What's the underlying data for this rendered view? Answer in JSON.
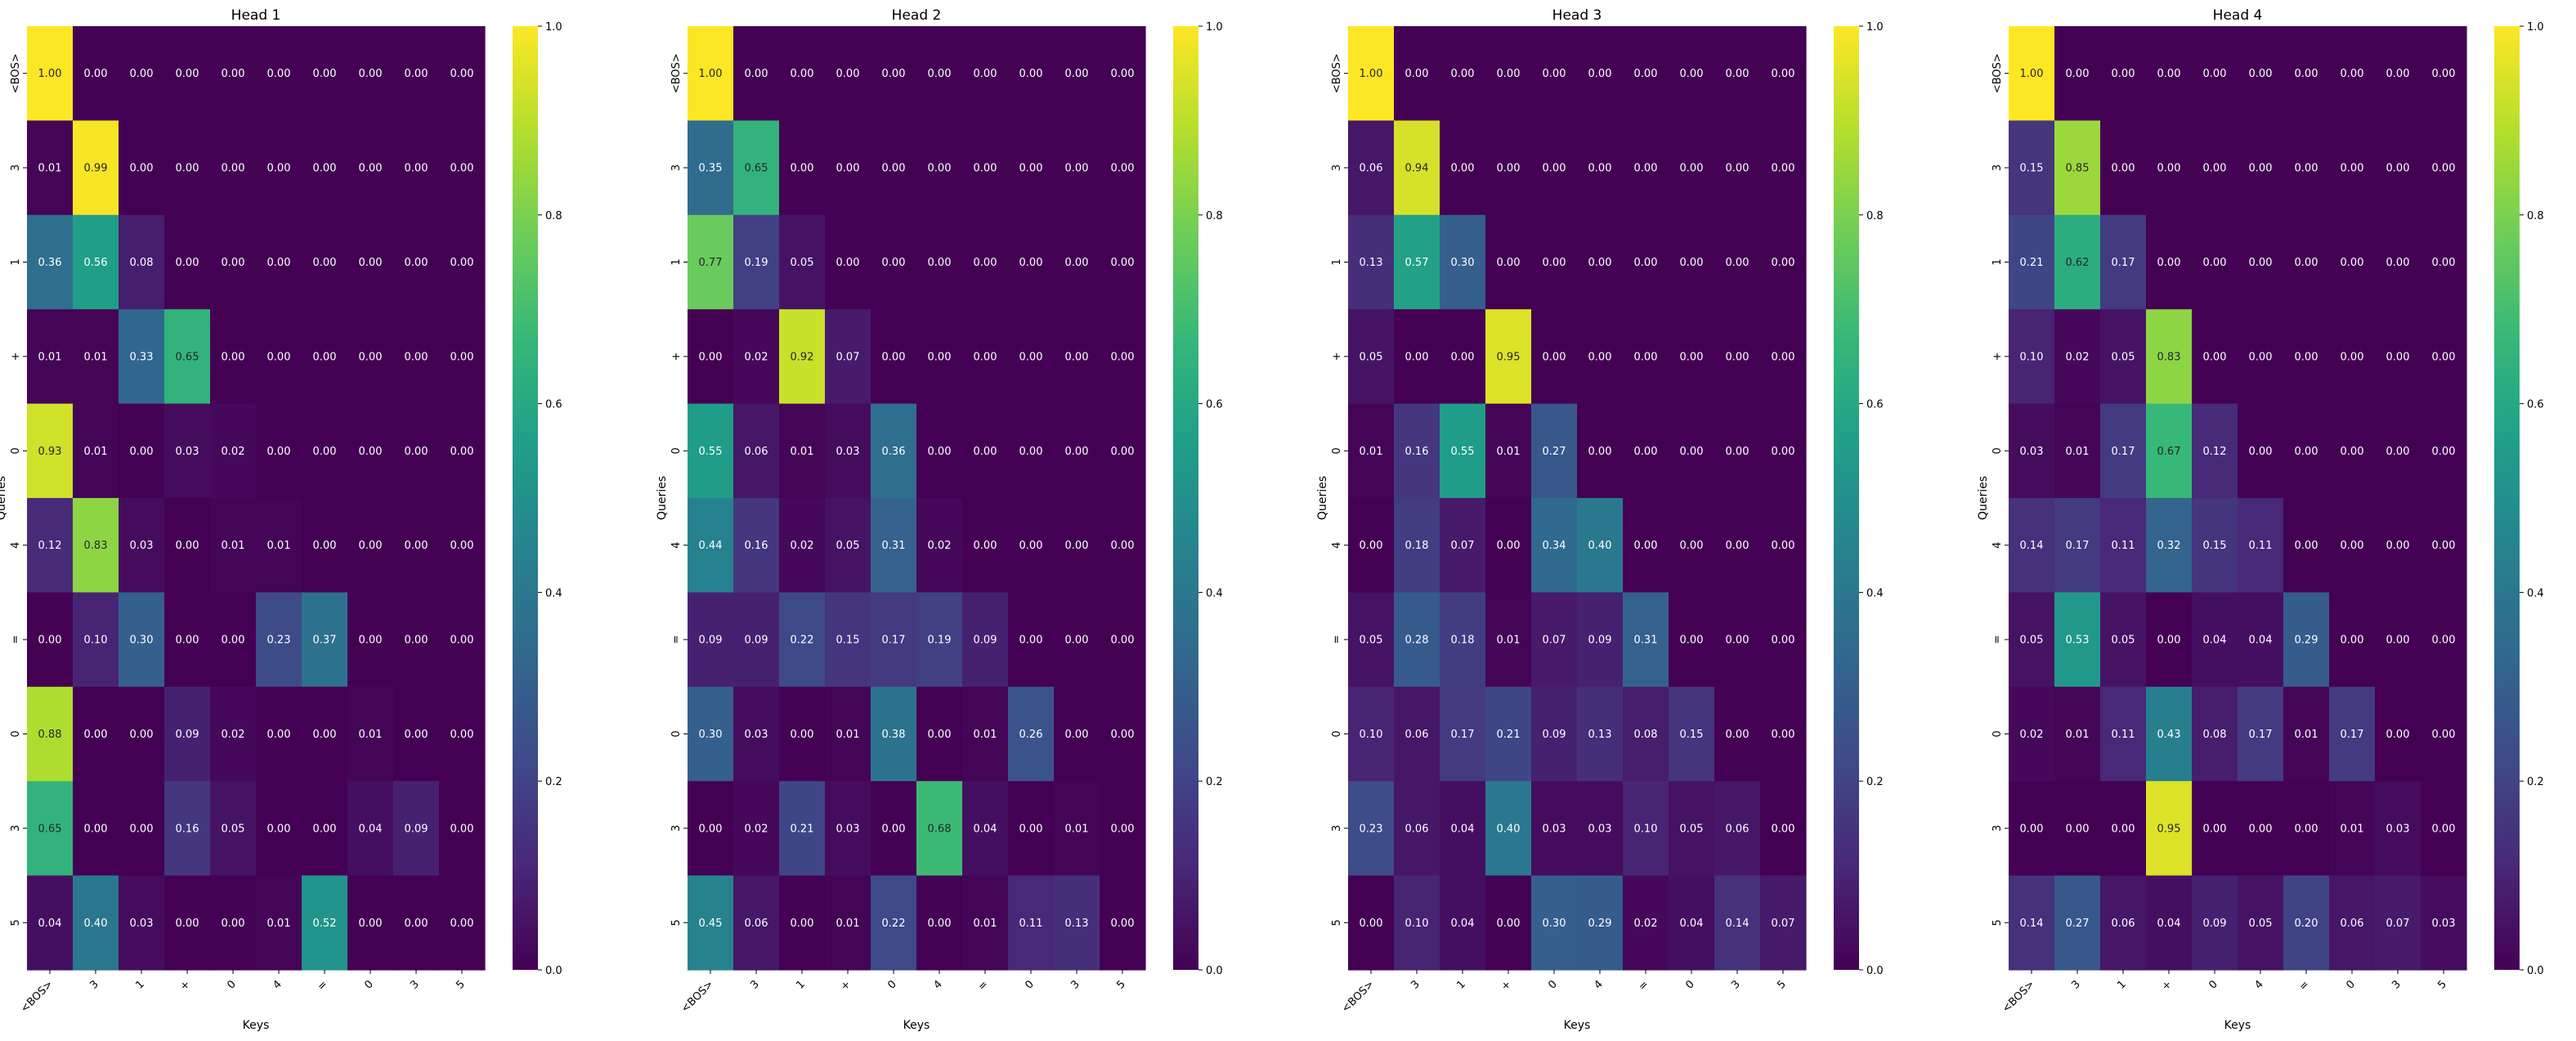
{
  "chart_data": [
    {
      "type": "heatmap",
      "title": "Head 1",
      "xlabel": "Keys",
      "ylabel": "Queries",
      "x_categories": [
        "<BOS>",
        "3",
        "1",
        "+",
        "0",
        "4",
        "=",
        "0",
        "3",
        "5"
      ],
      "y_categories": [
        "<BOS>",
        "3",
        "1",
        "+",
        "0",
        "4",
        "=",
        "0",
        "3",
        "5"
      ],
      "values": [
        [
          1.0,
          0.0,
          0.0,
          0.0,
          0.0,
          0.0,
          0.0,
          0.0,
          0.0,
          0.0
        ],
        [
          0.01,
          0.99,
          0.0,
          0.0,
          0.0,
          0.0,
          0.0,
          0.0,
          0.0,
          0.0
        ],
        [
          0.36,
          0.56,
          0.08,
          0.0,
          0.0,
          0.0,
          0.0,
          0.0,
          0.0,
          0.0
        ],
        [
          0.01,
          0.01,
          0.33,
          0.65,
          0.0,
          0.0,
          0.0,
          0.0,
          0.0,
          0.0
        ],
        [
          0.93,
          0.01,
          0.0,
          0.03,
          0.02,
          0.0,
          0.0,
          0.0,
          0.0,
          0.0
        ],
        [
          0.12,
          0.83,
          0.03,
          0.0,
          0.01,
          0.01,
          0.0,
          0.0,
          0.0,
          0.0
        ],
        [
          0.0,
          0.1,
          0.3,
          0.0,
          0.0,
          0.23,
          0.37,
          0.0,
          0.0,
          0.0
        ],
        [
          0.88,
          0.0,
          0.0,
          0.09,
          0.02,
          0.0,
          0.0,
          0.01,
          0.0,
          0.0
        ],
        [
          0.65,
          0.0,
          0.0,
          0.16,
          0.05,
          0.0,
          0.0,
          0.04,
          0.09,
          0.0
        ],
        [
          0.04,
          0.4,
          0.03,
          0.0,
          0.0,
          0.01,
          0.52,
          0.0,
          0.0,
          0.0
        ]
      ],
      "colorbar": {
        "colormap": "viridis",
        "range": [
          0.0,
          1.0
        ],
        "ticks": [
          "0.0",
          "0.2",
          "0.4",
          "0.6",
          "0.8",
          "1.0"
        ]
      }
    },
    {
      "type": "heatmap",
      "title": "Head 2",
      "xlabel": "Keys",
      "ylabel": "Queries",
      "x_categories": [
        "<BOS>",
        "3",
        "1",
        "+",
        "0",
        "4",
        "=",
        "0",
        "3",
        "5"
      ],
      "y_categories": [
        "<BOS>",
        "3",
        "1",
        "+",
        "0",
        "4",
        "=",
        "0",
        "3",
        "5"
      ],
      "values": [
        [
          1.0,
          0.0,
          0.0,
          0.0,
          0.0,
          0.0,
          0.0,
          0.0,
          0.0,
          0.0
        ],
        [
          0.35,
          0.65,
          0.0,
          0.0,
          0.0,
          0.0,
          0.0,
          0.0,
          0.0,
          0.0
        ],
        [
          0.77,
          0.19,
          0.05,
          0.0,
          0.0,
          0.0,
          0.0,
          0.0,
          0.0,
          0.0
        ],
        [
          0.0,
          0.02,
          0.92,
          0.07,
          0.0,
          0.0,
          0.0,
          0.0,
          0.0,
          0.0
        ],
        [
          0.55,
          0.06,
          0.01,
          0.03,
          0.36,
          0.0,
          0.0,
          0.0,
          0.0,
          0.0
        ],
        [
          0.44,
          0.16,
          0.02,
          0.05,
          0.31,
          0.02,
          0.0,
          0.0,
          0.0,
          0.0
        ],
        [
          0.09,
          0.09,
          0.22,
          0.15,
          0.17,
          0.19,
          0.09,
          0.0,
          0.0,
          0.0
        ],
        [
          0.3,
          0.03,
          0.0,
          0.01,
          0.38,
          0.0,
          0.01,
          0.26,
          0.0,
          0.0
        ],
        [
          0.0,
          0.02,
          0.21,
          0.03,
          0.0,
          0.68,
          0.04,
          0.0,
          0.01,
          0.0
        ],
        [
          0.45,
          0.06,
          0.0,
          0.01,
          0.22,
          0.0,
          0.01,
          0.11,
          0.13,
          0.0
        ]
      ],
      "colorbar": {
        "colormap": "viridis",
        "range": [
          0.0,
          1.0
        ],
        "ticks": [
          "0.0",
          "0.2",
          "0.4",
          "0.6",
          "0.8",
          "1.0"
        ]
      }
    },
    {
      "type": "heatmap",
      "title": "Head 3",
      "xlabel": "Keys",
      "ylabel": "Queries",
      "x_categories": [
        "<BOS>",
        "3",
        "1",
        "+",
        "0",
        "4",
        "=",
        "0",
        "3",
        "5"
      ],
      "y_categories": [
        "<BOS>",
        "3",
        "1",
        "+",
        "0",
        "4",
        "=",
        "0",
        "3",
        "5"
      ],
      "values": [
        [
          1.0,
          0.0,
          0.0,
          0.0,
          0.0,
          0.0,
          0.0,
          0.0,
          0.0,
          0.0
        ],
        [
          0.06,
          0.94,
          0.0,
          0.0,
          0.0,
          0.0,
          0.0,
          0.0,
          0.0,
          0.0
        ],
        [
          0.13,
          0.57,
          0.3,
          0.0,
          0.0,
          0.0,
          0.0,
          0.0,
          0.0,
          0.0
        ],
        [
          0.05,
          0.0,
          0.0,
          0.95,
          0.0,
          0.0,
          0.0,
          0.0,
          0.0,
          0.0
        ],
        [
          0.01,
          0.16,
          0.55,
          0.01,
          0.27,
          0.0,
          0.0,
          0.0,
          0.0,
          0.0
        ],
        [
          0.0,
          0.18,
          0.07,
          0.0,
          0.34,
          0.4,
          0.0,
          0.0,
          0.0,
          0.0
        ],
        [
          0.05,
          0.28,
          0.18,
          0.01,
          0.07,
          0.09,
          0.31,
          0.0,
          0.0,
          0.0
        ],
        [
          0.1,
          0.06,
          0.17,
          0.21,
          0.09,
          0.13,
          0.08,
          0.15,
          0.0,
          0.0
        ],
        [
          0.23,
          0.06,
          0.04,
          0.4,
          0.03,
          0.03,
          0.1,
          0.05,
          0.06,
          0.0
        ],
        [
          0.0,
          0.1,
          0.04,
          0.0,
          0.3,
          0.29,
          0.02,
          0.04,
          0.14,
          0.07
        ]
      ],
      "colorbar": {
        "colormap": "viridis",
        "range": [
          0.0,
          1.0
        ],
        "ticks": [
          "0.0",
          "0.2",
          "0.4",
          "0.6",
          "0.8",
          "1.0"
        ]
      }
    },
    {
      "type": "heatmap",
      "title": "Head 4",
      "xlabel": "Keys",
      "ylabel": "Queries",
      "x_categories": [
        "<BOS>",
        "3",
        "1",
        "+",
        "0",
        "4",
        "=",
        "0",
        "3",
        "5"
      ],
      "y_categories": [
        "<BOS>",
        "3",
        "1",
        "+",
        "0",
        "4",
        "=",
        "0",
        "3",
        "5"
      ],
      "values": [
        [
          1.0,
          0.0,
          0.0,
          0.0,
          0.0,
          0.0,
          0.0,
          0.0,
          0.0,
          0.0
        ],
        [
          0.15,
          0.85,
          0.0,
          0.0,
          0.0,
          0.0,
          0.0,
          0.0,
          0.0,
          0.0
        ],
        [
          0.21,
          0.62,
          0.17,
          0.0,
          0.0,
          0.0,
          0.0,
          0.0,
          0.0,
          0.0
        ],
        [
          0.1,
          0.02,
          0.05,
          0.83,
          0.0,
          0.0,
          0.0,
          0.0,
          0.0,
          0.0
        ],
        [
          0.03,
          0.01,
          0.17,
          0.67,
          0.12,
          0.0,
          0.0,
          0.0,
          0.0,
          0.0
        ],
        [
          0.14,
          0.17,
          0.11,
          0.32,
          0.15,
          0.11,
          0.0,
          0.0,
          0.0,
          0.0
        ],
        [
          0.05,
          0.53,
          0.05,
          0.0,
          0.04,
          0.04,
          0.29,
          0.0,
          0.0,
          0.0
        ],
        [
          0.02,
          0.01,
          0.11,
          0.43,
          0.08,
          0.17,
          0.01,
          0.17,
          0.0,
          0.0
        ],
        [
          0.0,
          0.0,
          0.0,
          0.95,
          0.0,
          0.0,
          0.0,
          0.01,
          0.03,
          0.0
        ],
        [
          0.14,
          0.27,
          0.06,
          0.04,
          0.09,
          0.05,
          0.2,
          0.06,
          0.07,
          0.03
        ]
      ],
      "colorbar": {
        "colormap": "viridis",
        "range": [
          0.0,
          1.0
        ],
        "ticks": [
          "0.0",
          "0.2",
          "0.4",
          "0.6",
          "0.8",
          "1.0"
        ]
      }
    }
  ]
}
